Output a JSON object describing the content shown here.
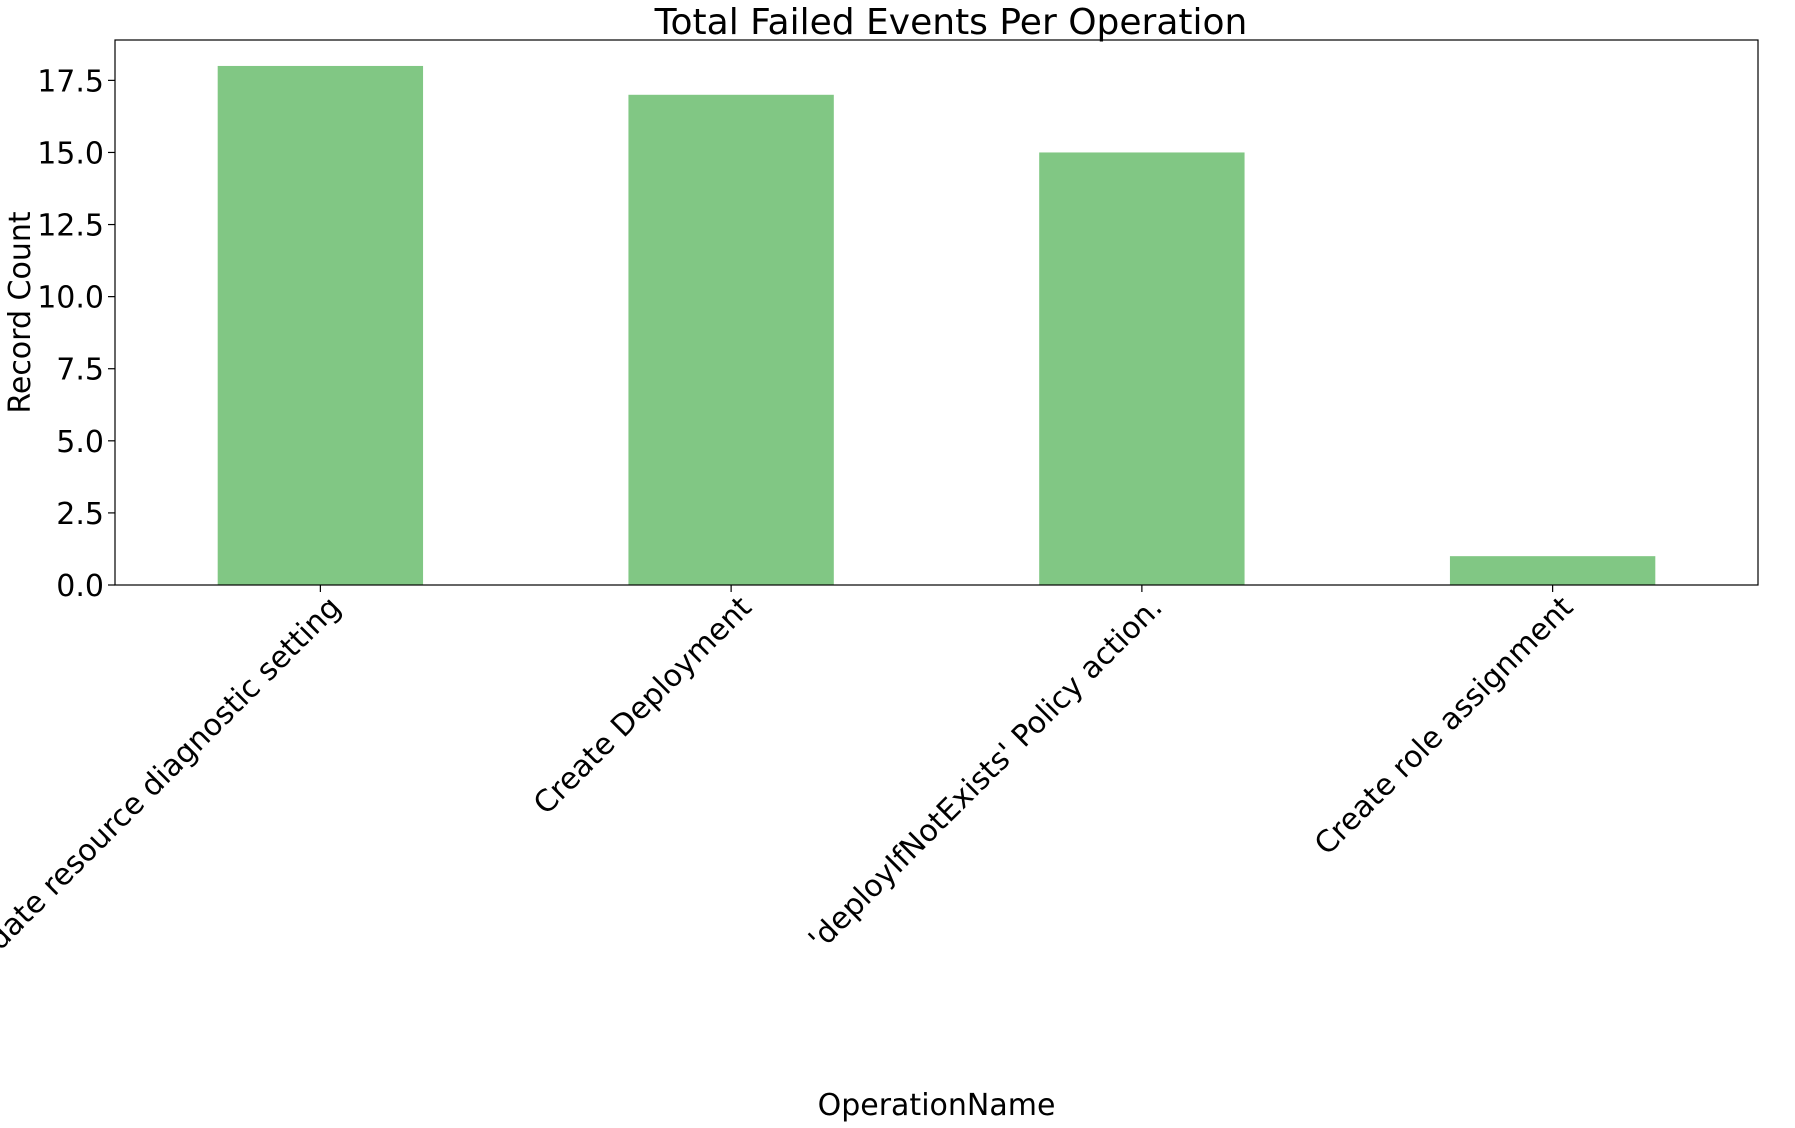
{
  "chart_data": {
    "type": "bar",
    "title": "Total Failed Events Per Operation",
    "xlabel": "OperationName",
    "ylabel": "Record Count",
    "categories": [
      "Create or update resource diagnostic setting",
      "Create Deployment",
      "'deployIfNotExists' Policy action.",
      "Create role assignment"
    ],
    "values": [
      18,
      17,
      15,
      1
    ],
    "ylim": [
      0,
      18.9
    ],
    "yticks": [
      0.0,
      2.5,
      5.0,
      7.5,
      10.0,
      12.5,
      15.0,
      17.5
    ],
    "ytick_labels": [
      "0.0",
      "2.5",
      "5.0",
      "7.5",
      "10.0",
      "12.5",
      "15.0",
      "17.5"
    ],
    "bar_color": "#81c784",
    "grid": false,
    "legend": "none"
  }
}
